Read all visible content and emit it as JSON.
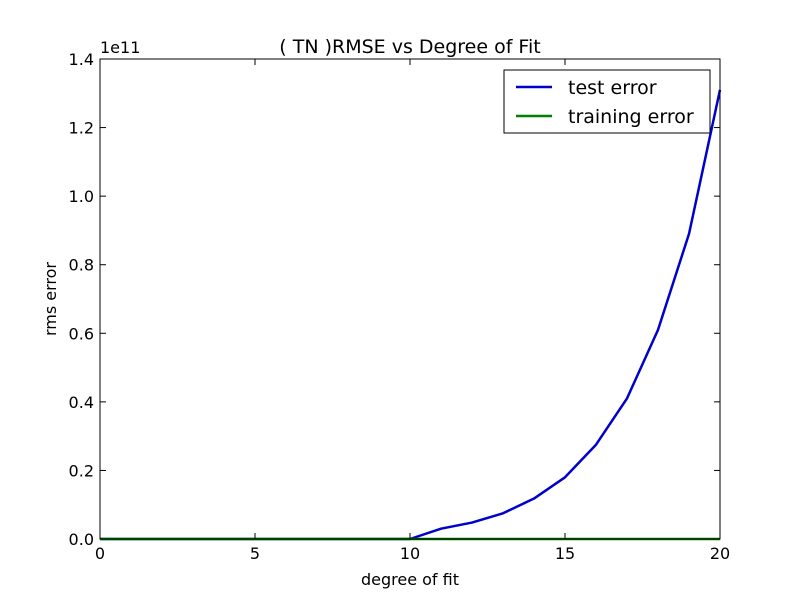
{
  "chart_data": {
    "type": "line",
    "title": "(  TN  )RMSE vs Degree of Fit",
    "xlabel": "degree of fit",
    "ylabel": "rms error",
    "y_offset_text": "1e11",
    "y_scale": 100000000000,
    "xlim": [
      0,
      20
    ],
    "ylim": [
      0,
      140000000000
    ],
    "x_ticks": [
      0,
      5,
      10,
      15,
      20
    ],
    "x_tick_labels": [
      "0",
      "5",
      "10",
      "15",
      "20"
    ],
    "y_ticks": [
      0,
      20000000000,
      40000000000,
      60000000000,
      80000000000,
      100000000000,
      120000000000,
      140000000000
    ],
    "y_tick_labels": [
      "0.0",
      "0.2",
      "0.4",
      "0.6",
      "0.8",
      "1.0",
      "1.2",
      "1.4"
    ],
    "grid": false,
    "legend_position": "top-right",
    "x": [
      0,
      1,
      2,
      3,
      4,
      5,
      6,
      7,
      8,
      9,
      10,
      11,
      12,
      13,
      14,
      15,
      16,
      17,
      18,
      19,
      20
    ],
    "series": [
      {
        "name": "test error",
        "color": "#0000cc",
        "values": [
          0,
          0,
          0,
          0,
          0,
          0,
          0,
          0,
          0,
          0,
          0,
          3000000000,
          4800000000,
          7500000000,
          11800000000,
          18000000000,
          27500000000,
          41000000000,
          61000000000,
          89000000000,
          131000000000
        ]
      },
      {
        "name": "training error",
        "color": "#007f00",
        "values": [
          0,
          0,
          0,
          0,
          0,
          0,
          0,
          0,
          0,
          0,
          0,
          0,
          0,
          0,
          0,
          0,
          0,
          0,
          0,
          0,
          0
        ]
      }
    ]
  }
}
